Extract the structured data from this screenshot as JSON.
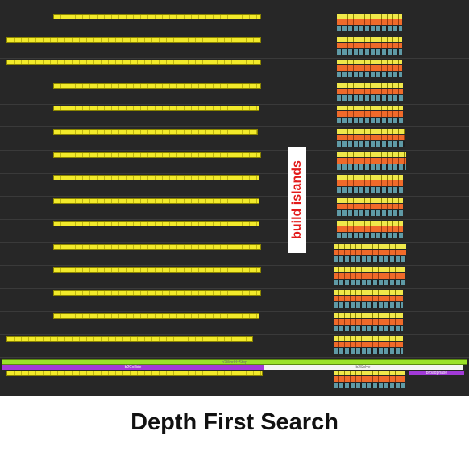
{
  "annotation": {
    "text": "build islands"
  },
  "caption": {
    "text": "Depth First Search"
  },
  "timeline": {
    "step_label": "b2World::Step",
    "collide_label": "b2Collide",
    "solve_label": "b2Solve",
    "broadphase_label": "broadphase"
  },
  "colors": {
    "panel_background": "#272727",
    "island_task": "#f2ea2a",
    "solver_orange": "#f06a2a",
    "solver_blue": "#5f9aa6",
    "step": "#9be22a",
    "collide": "#a23ad8",
    "annotation_text": "#e21b1b"
  },
  "icons": {}
}
